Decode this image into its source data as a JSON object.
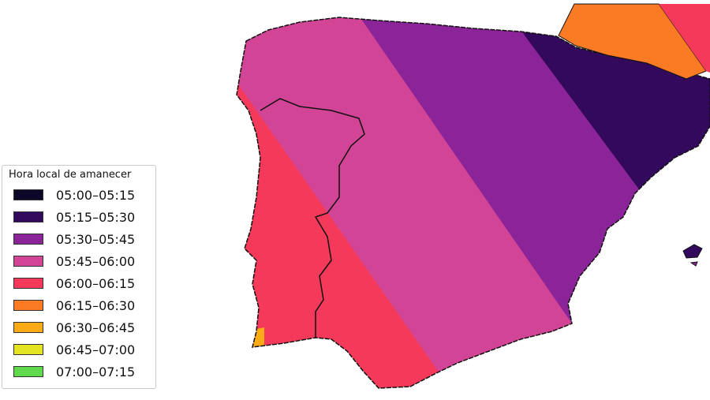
{
  "legend": {
    "title": "Hora local de amanecer",
    "items": [
      {
        "label": "05:00–05:15",
        "color": "#0d0829"
      },
      {
        "label": "05:15–05:30",
        "color": "#33095e"
      },
      {
        "label": "05:30–05:45",
        "color": "#8b2499"
      },
      {
        "label": "05:45–06:00",
        "color": "#d24596"
      },
      {
        "label": "06:00–06:15",
        "color": "#f5395a"
      },
      {
        "label": "06:15–06:30",
        "color": "#fb7b24"
      },
      {
        "label": "06:30–06:45",
        "color": "#fcaa15"
      },
      {
        "label": "06:45–07:00",
        "color": "#e3e31f"
      },
      {
        "label": "07:00–07:15",
        "color": "#60d94c"
      }
    ]
  }
}
